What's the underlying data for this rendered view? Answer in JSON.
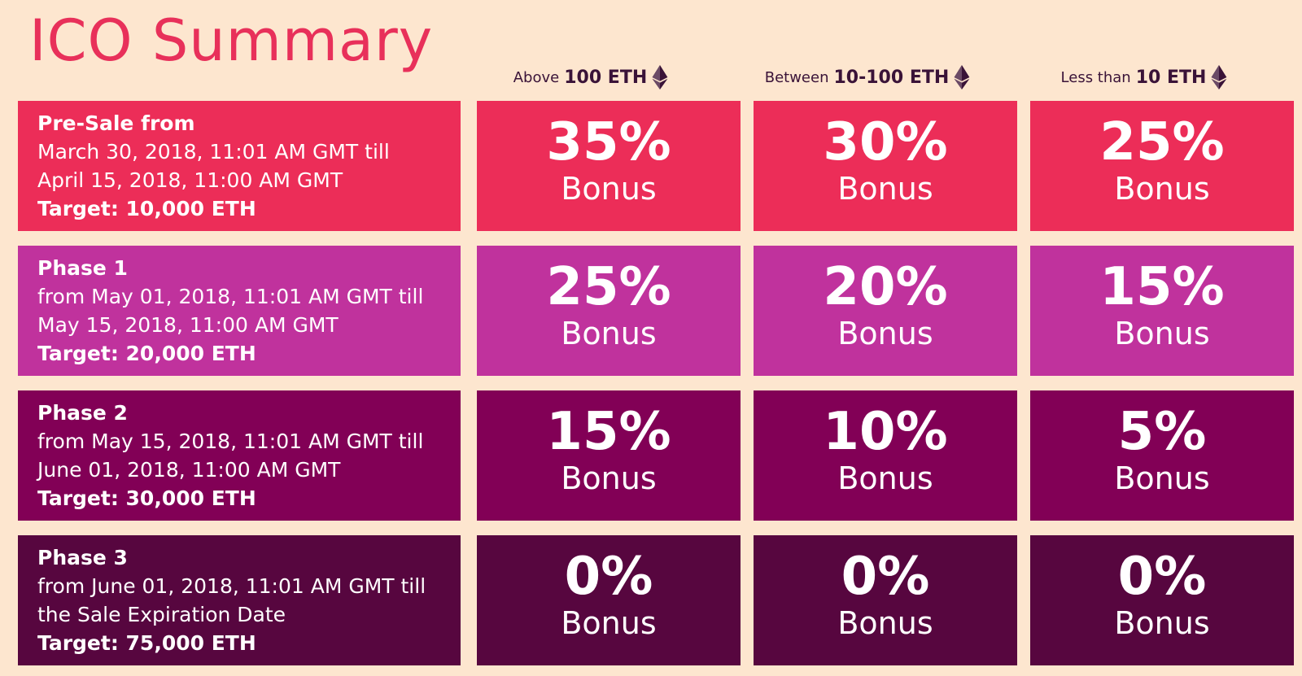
{
  "title": "ICO Summary",
  "columns": [
    {
      "prefix": "Above",
      "amount": "100 ETH",
      "icon": "ethereum-icon"
    },
    {
      "prefix": "Between",
      "amount": "10-100 ETH",
      "icon": "ethereum-icon"
    },
    {
      "prefix": "Less than",
      "amount": "10 ETH",
      "icon": "ethereum-icon"
    }
  ],
  "colors": {
    "background": "#fde6cf",
    "title": "#e8305a",
    "presale": "#ec2d58",
    "phase1": "#c0329d",
    "phase2": "#820056",
    "phase3": "#57063f"
  },
  "phases": [
    {
      "name": "Pre-Sale from",
      "line1": "March 30, 2018, 11:01 AM GMT till",
      "line2": "April 15, 2018, 11:00 AM GMT",
      "target": "Target: 10,000 ETH",
      "bonuses": [
        {
          "pct": "35%",
          "label": "Bonus"
        },
        {
          "pct": "30%",
          "label": "Bonus"
        },
        {
          "pct": "25%",
          "label": "Bonus"
        }
      ]
    },
    {
      "name": "Phase 1",
      "line1": "from May 01, 2018, 11:01 AM GMT till",
      "line2": "May 15, 2018, 11:00 AM GMT",
      "target": "Target: 20,000 ETH",
      "bonuses": [
        {
          "pct": "25%",
          "label": "Bonus"
        },
        {
          "pct": "20%",
          "label": "Bonus"
        },
        {
          "pct": "15%",
          "label": "Bonus"
        }
      ]
    },
    {
      "name": "Phase 2",
      "line1": "from May 15, 2018, 11:01 AM GMT till",
      "line2": "June 01, 2018, 11:00 AM GMT",
      "target": "Target: 30,000 ETH",
      "bonuses": [
        {
          "pct": "15%",
          "label": "Bonus"
        },
        {
          "pct": "10%",
          "label": "Bonus"
        },
        {
          "pct": "5%",
          "label": "Bonus"
        }
      ]
    },
    {
      "name": "Phase 3",
      "line1": "from June 01, 2018, 11:01 AM GMT till",
      "line2": "the Sale Expiration Date",
      "target": "Target: 75,000 ETH",
      "bonuses": [
        {
          "pct": "0%",
          "label": "Bonus"
        },
        {
          "pct": "0%",
          "label": "Bonus"
        },
        {
          "pct": "0%",
          "label": "Bonus"
        }
      ]
    }
  ]
}
